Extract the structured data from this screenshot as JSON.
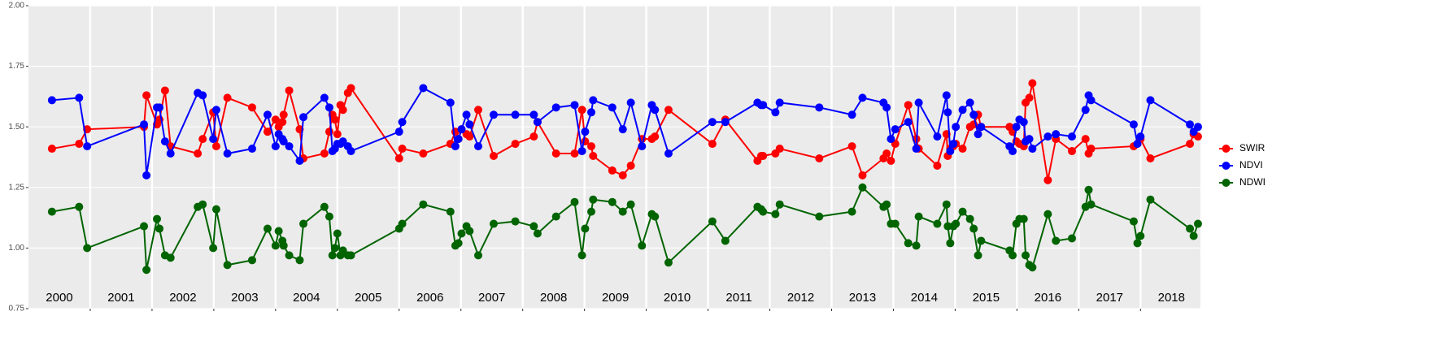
{
  "chart_data": {
    "type": "line",
    "x": [
      2000.38,
      2000.82,
      2000.95,
      2001.87,
      2001.91,
      2002.08,
      2002.12,
      2002.21,
      2002.3,
      2002.74,
      2002.82,
      2002.99,
      2003.04,
      2003.22,
      2003.62,
      2003.87,
      2004.0,
      2004.05,
      2004.11,
      2004.13,
      2004.22,
      2004.39,
      2004.45,
      2004.79,
      2004.87,
      2004.92,
      2004.96,
      2005.0,
      2005.05,
      2005.09,
      2005.17,
      2005.22,
      2006.0,
      2006.05,
      2006.39,
      2006.83,
      2006.91,
      2006.96,
      2007.01,
      2007.09,
      2007.14,
      2007.28,
      2007.53,
      2007.88,
      2008.18,
      2008.24,
      2008.54,
      2008.84,
      2008.96,
      2009.01,
      2009.11,
      2009.14,
      2009.45,
      2009.62,
      2009.75,
      2009.93,
      2010.09,
      2010.14,
      2010.36,
      2011.07,
      2011.28,
      2011.8,
      2011.86,
      2011.89,
      2012.09,
      2012.16,
      2012.8,
      2013.33,
      2013.5,
      2013.84,
      2013.89,
      2013.96,
      2014.03,
      2014.24,
      2014.37,
      2014.41,
      2014.71,
      2014.86,
      2014.88,
      2014.92,
      2014.97,
      2015.01,
      2015.12,
      2015.24,
      2015.3,
      2015.37,
      2015.42,
      2015.88,
      2015.93,
      2015.99,
      2016.04,
      2016.11,
      2016.14,
      2016.2,
      2016.25,
      2016.5,
      2016.63,
      2016.89,
      2017.11,
      2017.16,
      2017.2,
      2017.89,
      2017.95,
      2018.0,
      2018.16,
      2018.8,
      2018.86,
      2018.93
    ],
    "series": [
      {
        "name": "SWIR",
        "color": "#ff0000",
        "values": [
          1.41,
          1.43,
          1.49,
          1.5,
          1.63,
          1.51,
          1.53,
          1.65,
          1.42,
          1.39,
          1.45,
          1.56,
          1.42,
          1.62,
          1.58,
          1.48,
          1.53,
          1.5,
          1.52,
          1.55,
          1.65,
          1.49,
          1.37,
          1.39,
          1.48,
          1.55,
          1.53,
          1.47,
          1.59,
          1.57,
          1.64,
          1.66,
          1.37,
          1.41,
          1.39,
          1.43,
          1.48,
          1.45,
          1.49,
          1.47,
          1.46,
          1.57,
          1.38,
          1.43,
          1.46,
          1.52,
          1.39,
          1.39,
          1.57,
          1.44,
          1.42,
          1.38,
          1.32,
          1.3,
          1.34,
          1.45,
          1.45,
          1.46,
          1.57,
          1.43,
          1.53,
          1.36,
          1.38,
          1.38,
          1.39,
          1.41,
          1.37,
          1.42,
          1.3,
          1.37,
          1.39,
          1.36,
          1.43,
          1.59,
          1.45,
          1.41,
          1.34,
          1.47,
          1.38,
          1.41,
          1.42,
          1.43,
          1.41,
          1.5,
          1.51,
          1.55,
          1.5,
          1.5,
          1.48,
          1.44,
          1.43,
          1.42,
          1.6,
          1.62,
          1.68,
          1.28,
          1.45,
          1.4,
          1.45,
          1.39,
          1.41,
          1.42,
          1.43,
          1.45,
          1.37,
          1.43,
          1.47,
          1.46
        ]
      },
      {
        "name": "NDVI",
        "color": "#0000ff",
        "values": [
          1.61,
          1.62,
          1.42,
          1.51,
          1.3,
          1.58,
          1.58,
          1.44,
          1.39,
          1.64,
          1.63,
          1.45,
          1.57,
          1.39,
          1.41,
          1.55,
          1.42,
          1.47,
          1.45,
          1.44,
          1.42,
          1.36,
          1.54,
          1.62,
          1.58,
          1.4,
          1.41,
          1.43,
          1.43,
          1.44,
          1.42,
          1.4,
          1.48,
          1.52,
          1.66,
          1.6,
          1.42,
          1.45,
          1.49,
          1.55,
          1.51,
          1.42,
          1.55,
          1.55,
          1.55,
          1.52,
          1.58,
          1.59,
          1.4,
          1.48,
          1.56,
          1.61,
          1.58,
          1.49,
          1.6,
          1.42,
          1.59,
          1.57,
          1.39,
          1.52,
          1.52,
          1.6,
          1.59,
          1.59,
          1.56,
          1.6,
          1.58,
          1.55,
          1.62,
          1.6,
          1.58,
          1.45,
          1.49,
          1.52,
          1.41,
          1.6,
          1.46,
          1.63,
          1.56,
          1.4,
          1.43,
          1.5,
          1.57,
          1.6,
          1.55,
          1.47,
          1.5,
          1.42,
          1.4,
          1.5,
          1.53,
          1.52,
          1.44,
          1.45,
          1.41,
          1.46,
          1.47,
          1.46,
          1.57,
          1.63,
          1.61,
          1.51,
          1.43,
          1.46,
          1.61,
          1.51,
          1.48,
          1.5
        ]
      },
      {
        "name": "NDWI",
        "color": "#006400",
        "values": [
          1.15,
          1.17,
          1.0,
          1.09,
          0.91,
          1.12,
          1.08,
          0.97,
          0.96,
          1.17,
          1.18,
          1.0,
          1.16,
          0.93,
          0.95,
          1.08,
          1.01,
          1.07,
          1.03,
          1.01,
          0.97,
          0.95,
          1.1,
          1.17,
          1.13,
          0.97,
          1.0,
          1.06,
          0.97,
          0.99,
          0.97,
          0.97,
          1.08,
          1.1,
          1.18,
          1.15,
          1.01,
          1.02,
          1.06,
          1.09,
          1.07,
          0.97,
          1.1,
          1.11,
          1.09,
          1.06,
          1.13,
          1.19,
          0.97,
          1.08,
          1.15,
          1.2,
          1.19,
          1.15,
          1.18,
          1.01,
          1.14,
          1.13,
          0.94,
          1.11,
          1.03,
          1.17,
          1.16,
          1.15,
          1.14,
          1.18,
          1.13,
          1.15,
          1.25,
          1.17,
          1.18,
          1.1,
          1.1,
          1.02,
          1.01,
          1.13,
          1.1,
          1.18,
          1.09,
          1.02,
          1.09,
          1.1,
          1.15,
          1.12,
          1.08,
          0.97,
          1.03,
          0.99,
          0.97,
          1.1,
          1.12,
          1.12,
          0.97,
          0.93,
          0.92,
          1.14,
          1.03,
          1.04,
          1.17,
          1.24,
          1.18,
          1.11,
          1.02,
          1.05,
          1.2,
          1.08,
          1.05,
          1.1
        ]
      }
    ],
    "xlim": [
      2000,
      2018.97
    ],
    "xticks": [
      2001,
      2002,
      2003,
      2004,
      2005,
      2006,
      2007,
      2008,
      2009,
      2010,
      2011,
      2012,
      2013,
      2014,
      2015,
      2016,
      2017,
      2018
    ],
    "year_labels": [
      "2000",
      "2001",
      "2002",
      "2003",
      "2004",
      "2005",
      "2006",
      "2007",
      "2008",
      "2009",
      "2010",
      "2011",
      "2012",
      "2013",
      "2014",
      "2015",
      "2016",
      "2017",
      "2018"
    ],
    "ylim": [
      0.75,
      2.0
    ],
    "yticks": [
      0.75,
      {
        "value": 1.0,
        "label": "1.00"
      },
      1.25,
      {
        "value": 1.5,
        "label": "1.50"
      },
      1.75,
      {
        "value": 2.0,
        "label": "2.00"
      }
    ],
    "grid": true,
    "legend": "right"
  }
}
